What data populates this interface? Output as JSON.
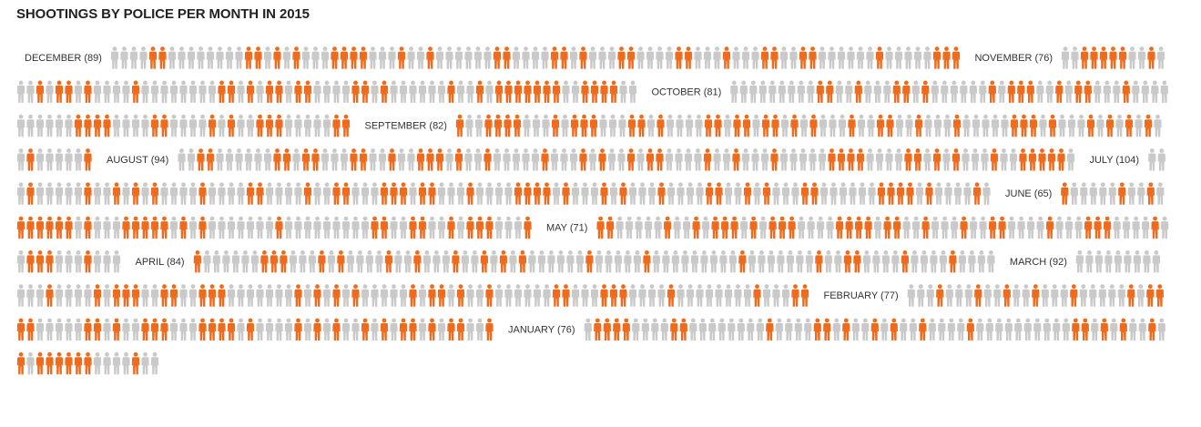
{
  "chart_data": {
    "type": "pictogram",
    "title": "SHOOTINGS BY POLICE PER MONTH IN 2015",
    "order": "newest-first",
    "months": [
      {
        "label": "DECEMBER (89)",
        "month": "December",
        "count": 89
      },
      {
        "label": "NOVEMBER (76)",
        "month": "November",
        "count": 76
      },
      {
        "label": "OCTOBER (81)",
        "month": "October",
        "count": 81
      },
      {
        "label": "SEPTEMBER (82)",
        "month": "September",
        "count": 82
      },
      {
        "label": "AUGUST (94)",
        "month": "August",
        "count": 94
      },
      {
        "label": "JULY (104)",
        "month": "July",
        "count": 104
      },
      {
        "label": "JUNE (65)",
        "month": "June",
        "count": 65
      },
      {
        "label": "MAY (71)",
        "month": "May",
        "count": 71
      },
      {
        "label": "APRIL (84)",
        "month": "April",
        "count": 84
      },
      {
        "label": "MARCH (92)",
        "month": "March",
        "count": 92
      },
      {
        "label": "FEBRUARY (77)",
        "month": "February",
        "count": 77
      },
      {
        "label": "JANUARY (76)",
        "month": "January",
        "count": 76
      }
    ],
    "colors": {
      "highlight": "#ee6a1c",
      "base": "#c9c9c9",
      "label": "#333333"
    },
    "icon": "person-icon"
  }
}
